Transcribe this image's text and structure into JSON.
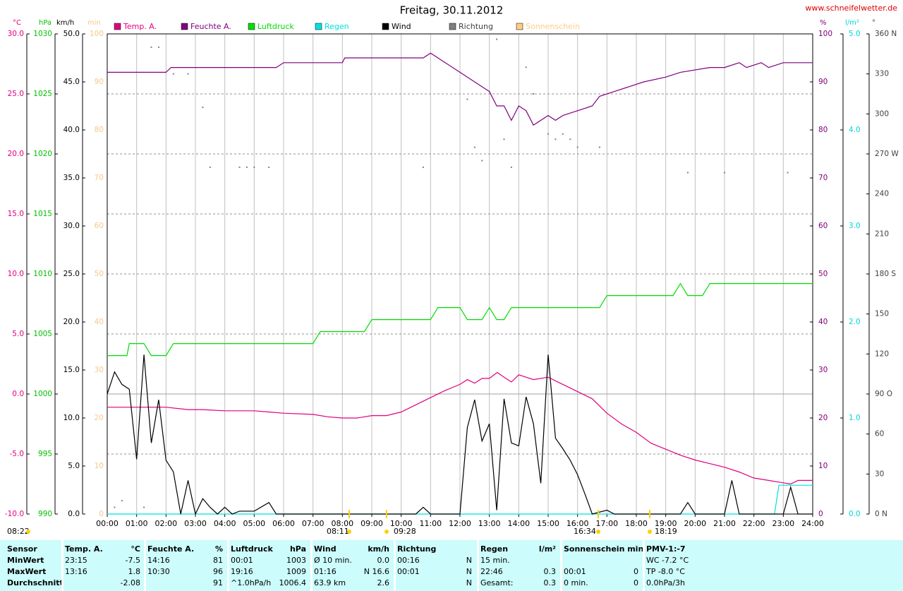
{
  "chart_data": {
    "type": "line",
    "title": "Freitag, 30.11.2012",
    "source": "www.schneifelwetter.de",
    "xlim": [
      0,
      24
    ],
    "xticks": [
      {
        "value": 0,
        "label": "00:00"
      },
      {
        "value": 1,
        "label": "01:00"
      },
      {
        "value": 2,
        "label": "02:00"
      },
      {
        "value": 3,
        "label": "03:00"
      },
      {
        "value": 4,
        "label": "04:00"
      },
      {
        "value": 5,
        "label": "05:00"
      },
      {
        "value": 6,
        "label": "06:00"
      },
      {
        "value": 7,
        "label": "07:00"
      },
      {
        "value": 8,
        "label": "08:00"
      },
      {
        "value": 9,
        "label": "09:00"
      },
      {
        "value": 10,
        "label": "10:00"
      },
      {
        "value": 11,
        "label": "11:00"
      },
      {
        "value": 12,
        "label": "12:00"
      },
      {
        "value": 13,
        "label": "13:00"
      },
      {
        "value": 14,
        "label": "14:00"
      },
      {
        "value": 15,
        "label": "15:00"
      },
      {
        "value": 16,
        "label": "16:00"
      },
      {
        "value": 17,
        "label": "17:00"
      },
      {
        "value": 18,
        "label": "18:00"
      },
      {
        "value": 19,
        "label": "19:00"
      },
      {
        "value": 20,
        "label": "20:00"
      },
      {
        "value": 21,
        "label": "21:00"
      },
      {
        "value": 22,
        "label": "22:00"
      },
      {
        "value": 23,
        "label": "23:00"
      },
      {
        "value": 24,
        "label": "24:00"
      }
    ],
    "grid": true,
    "axes": [
      {
        "label": "°C",
        "color": "#e0007f",
        "ylim": [
          -10,
          30
        ],
        "yticks": [
          {
            "value": -10,
            "label": "-10.0"
          },
          {
            "value": -5,
            "label": "-5.0"
          },
          {
            "value": 0,
            "label": "0.0"
          },
          {
            "value": 5,
            "label": "5.0"
          },
          {
            "value": 10,
            "label": "10.0"
          },
          {
            "value": 15,
            "label": "15.0"
          },
          {
            "value": 20,
            "label": "20.0"
          },
          {
            "value": 25,
            "label": "25.0"
          },
          {
            "value": 30,
            "label": "30.0"
          }
        ]
      },
      {
        "label": "hPa",
        "color": "#00c000",
        "ylim": [
          990,
          1030
        ],
        "yticks": [
          990,
          995,
          1000,
          1005,
          1010,
          1015,
          1020,
          1025,
          1030
        ]
      },
      {
        "label": "km/h",
        "color": "#000000",
        "ylim": [
          0,
          50
        ],
        "yticks": [
          {
            "value": 0,
            "label": "0.0"
          },
          {
            "value": 5,
            "label": "5.0"
          },
          {
            "value": 10,
            "label": "10.0"
          },
          {
            "value": 15,
            "label": "15.0"
          },
          {
            "value": 20,
            "label": "20.0"
          },
          {
            "value": 25,
            "label": "25.0"
          },
          {
            "value": 30,
            "label": "30.0"
          },
          {
            "value": 35,
            "label": "35.0"
          },
          {
            "value": 40,
            "label": "40.0"
          },
          {
            "value": 45,
            "label": "45.0"
          },
          {
            "value": 50,
            "label": "50.0"
          }
        ]
      },
      {
        "label": "min",
        "color": "#f5c88a",
        "ylim": [
          0,
          100
        ],
        "yticks": [
          0,
          10,
          20,
          30,
          40,
          50,
          60,
          70,
          80,
          90,
          100
        ]
      },
      {
        "label": "%",
        "color": "#800080",
        "ylim": [
          0,
          100
        ],
        "yticks": [
          0,
          10,
          20,
          30,
          40,
          50,
          60,
          70,
          80,
          90,
          100
        ]
      },
      {
        "label": "l/m²",
        "color": "#00d8d8",
        "ylim": [
          0,
          5
        ],
        "yticks": [
          {
            "value": 0,
            "label": "0.0"
          },
          {
            "value": 1,
            "label": "1.0"
          },
          {
            "value": 2,
            "label": "2.0"
          },
          {
            "value": 3,
            "label": "3.0"
          },
          {
            "value": 4,
            "label": "4.0"
          },
          {
            "value": 5,
            "label": "5.0"
          }
        ]
      },
      {
        "label": "°",
        "color": "#404040",
        "ylim": [
          0,
          360
        ],
        "yticks": [
          {
            "value": 0,
            "label": "0 N"
          },
          30,
          60,
          {
            "value": 90,
            "label": "90 O"
          },
          120,
          150,
          {
            "value": 180,
            "label": "180 S"
          },
          210,
          240,
          {
            "value": 270,
            "label": "270 W"
          },
          300,
          330,
          {
            "value": 360,
            "label": "360 N"
          }
        ]
      }
    ],
    "series": [
      {
        "name": "Temp. A.",
        "color": "#e0007f",
        "axis": 0,
        "x": [
          0,
          1,
          2,
          2.75,
          3.25,
          4,
          5,
          5.5,
          6,
          7,
          7.5,
          8,
          8.5,
          9,
          9.5,
          10,
          10.5,
          11,
          11.5,
          12,
          12.25,
          12.5,
          12.75,
          13,
          13.27,
          13.5,
          13.75,
          14,
          14.5,
          15,
          15.5,
          16,
          16.5,
          17,
          17.5,
          18,
          18.5,
          19,
          19.5,
          20,
          20.5,
          21,
          21.5,
          22,
          22.5,
          23,
          23.25,
          23.5,
          24
        ],
        "values": [
          -1.1,
          -1.1,
          -1.1,
          -1.3,
          -1.3,
          -1.4,
          -1.4,
          -1.5,
          -1.6,
          -1.7,
          -1.9,
          -2.0,
          -2.0,
          -1.8,
          -1.8,
          -1.5,
          -0.9,
          -0.3,
          0.3,
          0.8,
          1.2,
          0.9,
          1.3,
          1.3,
          1.8,
          1.4,
          1.0,
          1.6,
          1.2,
          1.4,
          0.8,
          0.2,
          -0.4,
          -1.6,
          -2.5,
          -3.2,
          -4.1,
          -4.6,
          -5.1,
          -5.5,
          -5.8,
          -6.1,
          -6.5,
          -7.0,
          -7.2,
          -7.4,
          -7.5,
          -7.2,
          -7.2
        ]
      },
      {
        "name": "Feuchte A.",
        "color": "#800080",
        "axis": 4,
        "x": [
          0,
          2,
          2.17,
          5.75,
          6,
          8,
          8.08,
          10.75,
          11,
          11.25,
          12,
          12.5,
          13,
          13.25,
          13.5,
          13.75,
          14,
          14.25,
          14.5,
          15,
          15.25,
          15.5,
          16,
          16.5,
          16.75,
          17.25,
          17.75,
          18.25,
          19,
          19.5,
          20.5,
          21,
          21.5,
          21.75,
          22.25,
          22.5,
          23,
          24
        ],
        "values": [
          92,
          92,
          93,
          93,
          94,
          94,
          95,
          95,
          96,
          95,
          92,
          90,
          88,
          85,
          85,
          82,
          85,
          84,
          81,
          83,
          82,
          83,
          84,
          85,
          87,
          88,
          89,
          90,
          91,
          92,
          93,
          93,
          94,
          93,
          94,
          93,
          94,
          94
        ]
      },
      {
        "name": "Luftdruck",
        "color": "#00dd00",
        "axis": 1,
        "x": [
          0,
          0.67,
          0.75,
          1.25,
          1.5,
          2,
          2.25,
          7,
          7.25,
          8.75,
          9,
          11,
          11.25,
          12,
          12.25,
          12.75,
          13,
          13.25,
          13.5,
          13.75,
          16.75,
          17,
          19.25,
          19.5,
          19.75,
          20.25,
          20.5,
          24
        ],
        "values": [
          1003.2,
          1003.2,
          1004.2,
          1004.2,
          1003.2,
          1003.2,
          1004.2,
          1004.2,
          1005.2,
          1005.2,
          1006.2,
          1006.2,
          1007.2,
          1007.2,
          1006.2,
          1006.2,
          1007.2,
          1006.2,
          1006.2,
          1007.2,
          1007.2,
          1008.2,
          1008.2,
          1009.2,
          1008.2,
          1008.2,
          1009.2,
          1009.2
        ]
      },
      {
        "name": "Regen",
        "color": "#00e0e0",
        "axis": 5,
        "x": [
          0,
          22.7,
          22.85,
          24
        ],
        "values": [
          0,
          0,
          0.3,
          0.3
        ]
      },
      {
        "name": "Wind",
        "color": "#000000",
        "axis": 2,
        "x": [
          0,
          0.25,
          0.5,
          0.75,
          1,
          1.25,
          1.5,
          1.75,
          2,
          2.25,
          2.5,
          2.75,
          3,
          3.25,
          3.5,
          3.75,
          4,
          4.25,
          4.5,
          5,
          5.5,
          5.75,
          10.5,
          10.75,
          11,
          12,
          12.25,
          12.5,
          12.75,
          13,
          13.25,
          13.5,
          13.75,
          14,
          14.25,
          14.5,
          14.75,
          15,
          15.25,
          15.5,
          15.75,
          16,
          16.25,
          16.5,
          17,
          17.25,
          19.5,
          19.75,
          20,
          21,
          21.25,
          21.5,
          23,
          23.25,
          23.5,
          24
        ],
        "values": [
          12.5,
          14.8,
          13.5,
          13,
          5.7,
          16.6,
          7.4,
          11.9,
          5.6,
          4.4,
          0,
          3.5,
          0,
          1.6,
          0.7,
          0,
          0.7,
          0,
          0.3,
          0.3,
          1.2,
          0,
          0,
          0.7,
          0,
          0,
          9,
          11.9,
          7.6,
          9.4,
          0.4,
          12,
          7.4,
          7.1,
          12.2,
          9.4,
          3.2,
          16.6,
          7.9,
          6.8,
          5.6,
          4.1,
          2.1,
          0,
          0.4,
          0,
          0,
          1.2,
          0,
          0,
          3.5,
          0,
          0,
          2.8,
          0,
          0
        ]
      },
      {
        "name": "Richtung",
        "color": "#808080",
        "axis": 6,
        "type": "scatter",
        "x": [
          0.25,
          0.5,
          1.25,
          1.5,
          1.75,
          2.25,
          2.75,
          3.25,
          3.5,
          4.5,
          4.75,
          5,
          5.5,
          10.75,
          12.25,
          12.5,
          12.75,
          13.25,
          13.5,
          13.75,
          14.25,
          14.5,
          15,
          15.25,
          15.5,
          15.75,
          16,
          16.75,
          19.75,
          21,
          23.15
        ],
        "values": [
          5,
          10,
          5,
          350,
          350,
          330,
          330,
          305,
          260,
          260,
          260,
          260,
          260,
          260,
          311,
          275,
          265,
          356,
          281,
          260,
          335,
          315,
          285,
          281,
          285,
          281,
          275,
          275,
          256,
          256,
          256
        ]
      },
      {
        "name": "Sonnenschein",
        "color": "#ffcc80",
        "axis": 3,
        "x": [],
        "values": []
      }
    ],
    "annotations": [
      "08:22",
      "08:11",
      "09:28",
      "16:34",
      "18:19"
    ]
  },
  "stats": {
    "groups": [
      {
        "header": [
          "Sensor"
        ],
        "rows": [
          [
            "MinWert"
          ],
          [
            "MaxWert"
          ],
          [
            "Durchschnitt"
          ]
        ]
      },
      {
        "header": [
          "Temp. A.",
          "°C"
        ],
        "rows": [
          [
            "23:15",
            "-7.5"
          ],
          [
            "13:16",
            "1.8"
          ],
          [
            null,
            "-2.08"
          ]
        ]
      },
      {
        "header": [
          "Feuchte A.",
          "%"
        ],
        "rows": [
          [
            "14:16",
            "81"
          ],
          [
            "10:30",
            "96"
          ],
          [
            null,
            "91"
          ]
        ]
      },
      {
        "header": [
          "Luftdruck",
          "hPa"
        ],
        "rows": [
          [
            "00:01",
            "1003"
          ],
          [
            "19:16",
            "1009"
          ],
          [
            "^1.0hPa/h",
            "1006.4"
          ]
        ]
      },
      {
        "header": [
          "Wind",
          "km/h"
        ],
        "rows": [
          [
            "Ø 10 min.",
            "0.0"
          ],
          [
            "01:16",
            "N 16.6"
          ],
          [
            "63.9 km",
            "2.6"
          ]
        ]
      },
      {
        "header": [
          "Richtung",
          null
        ],
        "rows": [
          [
            "00:16",
            "N"
          ],
          [
            "00:01",
            "N"
          ],
          [
            null,
            "N"
          ]
        ]
      },
      {
        "header": [
          "Regen",
          "l/m²"
        ],
        "rows": [
          [
            "15 min.",
            null
          ],
          [
            "22:46",
            "0.3"
          ],
          [
            "Gesamt:",
            "0.3"
          ]
        ]
      },
      {
        "header": [
          "Sonnenschein min",
          null
        ],
        "rows": [
          [
            null,
            null
          ],
          [
            "00:01",
            "0"
          ],
          [
            "0 min.",
            "0"
          ]
        ]
      },
      {
        "header": [
          "PMV-1:-7"
        ],
        "rows": [
          [
            "WC -7.2 °C"
          ],
          [
            "TP -8.0 °C"
          ],
          [
            "0.0hPa/3h"
          ]
        ]
      }
    ]
  }
}
